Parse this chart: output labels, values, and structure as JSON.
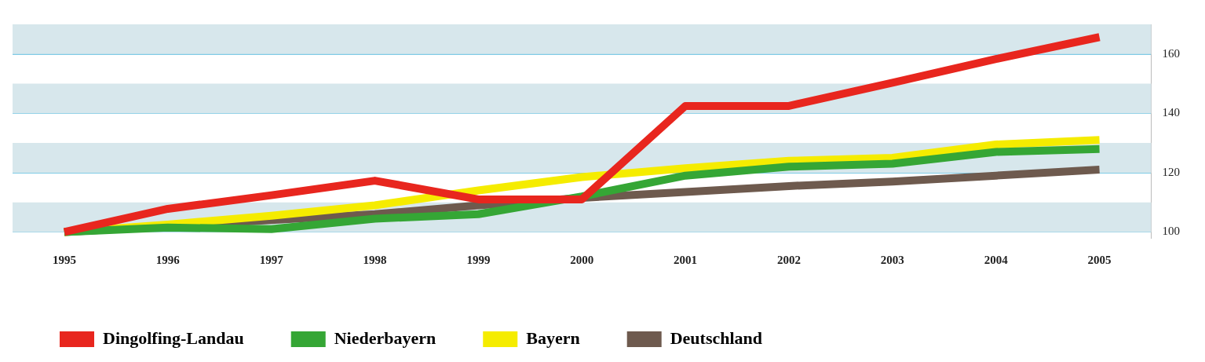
{
  "chart_data": {
    "type": "line",
    "categories": [
      "1995",
      "1996",
      "1997",
      "1998",
      "1999",
      "2000",
      "2001",
      "2002",
      "2003",
      "2004",
      "2005"
    ],
    "series": [
      {
        "name": "Dingolfing-Landau",
        "color": "#e8261e",
        "values": [
          100,
          107.8,
          112.4,
          117.3,
          111,
          111,
          142.5,
          142.5,
          150.3,
          158.3,
          165.7
        ]
      },
      {
        "name": "Niederbayern",
        "color": "#35a635",
        "values": [
          100,
          101.5,
          101,
          104.5,
          106,
          112,
          119,
          122,
          123,
          127,
          128
        ]
      },
      {
        "name": "Bayern",
        "color": "#f5ec00",
        "values": [
          100,
          102.5,
          105.5,
          109,
          114,
          118.5,
          121.5,
          124,
          125,
          129.5,
          131
        ]
      },
      {
        "name": "Deutschland",
        "color": "#6e5a4e",
        "values": [
          100,
          102,
          104,
          106,
          109,
          111.5,
          113.5,
          115.5,
          117,
          119,
          121
        ]
      }
    ],
    "ylim": [
      98,
      170
    ],
    "yticks": [
      100,
      120,
      140,
      160
    ],
    "grid": "y",
    "legend": "bottom left",
    "marker": "none",
    "line_style": "solid",
    "bands": [
      {
        "axis": "y",
        "from": 100,
        "to": 110,
        "color": "#d7e7ec"
      },
      {
        "axis": "y",
        "from": 120,
        "to": 130,
        "color": "#d7e7ec"
      },
      {
        "axis": "y",
        "from": 140,
        "to": 150,
        "color": "#d7e7ec"
      },
      {
        "axis": "y",
        "from": 160,
        "to": 170,
        "color": "#d7e7ec"
      }
    ]
  }
}
